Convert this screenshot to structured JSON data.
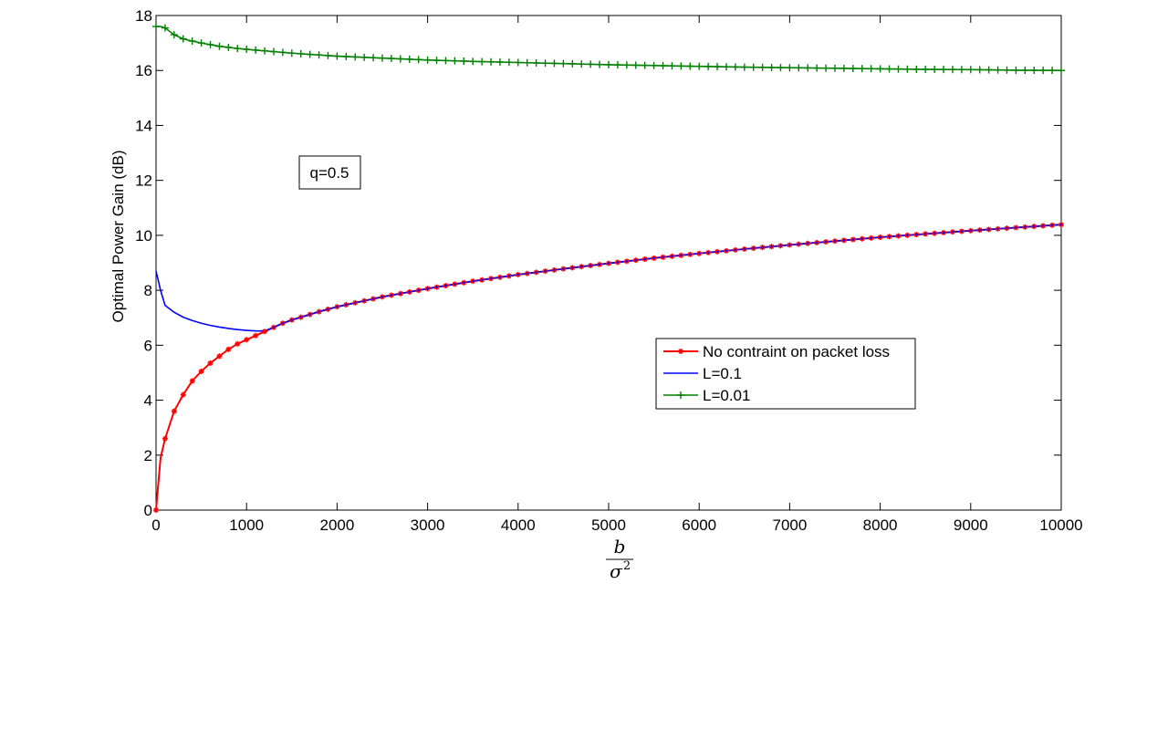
{
  "chart_data": {
    "type": "line",
    "xlabel_numerator": "b",
    "xlabel_denominator": "σ",
    "xlabel_exponent": "2",
    "ylabel": "Optimal Power Gain (dB)",
    "xlim": [
      0,
      10000
    ],
    "ylim": [
      0,
      18
    ],
    "x_ticks": [
      0,
      1000,
      2000,
      3000,
      4000,
      5000,
      6000,
      7000,
      8000,
      9000,
      10000
    ],
    "y_ticks": [
      0,
      2,
      4,
      6,
      8,
      10,
      12,
      14,
      16,
      18
    ],
    "grid": false,
    "legend_position": "center-right",
    "annotation": "q=0.5",
    "series": [
      {
        "name": "No contraint on packet loss",
        "color": "#ff0000",
        "marker": "star",
        "x": [
          0,
          50,
          100,
          200,
          300,
          400,
          500,
          600,
          700,
          800,
          900,
          1000,
          1100,
          1200,
          1300,
          1400,
          1500,
          1600,
          1700,
          1800,
          1900,
          2000,
          2500,
          3000,
          3500,
          4000,
          4500,
          5000,
          5500,
          6000,
          6500,
          7000,
          7500,
          8000,
          8500,
          9000,
          9500,
          10000
        ],
        "y": [
          0,
          1.9,
          2.6,
          3.6,
          4.2,
          4.7,
          5.05,
          5.35,
          5.6,
          5.85,
          6.05,
          6.2,
          6.35,
          6.5,
          6.65,
          6.8,
          6.92,
          7.02,
          7.12,
          7.22,
          7.31,
          7.4,
          7.76,
          8.06,
          8.33,
          8.57,
          8.78,
          8.98,
          9.17,
          9.34,
          9.5,
          9.65,
          9.79,
          9.93,
          10.05,
          10.17,
          10.28,
          10.39
        ]
      },
      {
        "name": "L=0.1",
        "color": "#0000ff",
        "marker": "none",
        "x": [
          0,
          50,
          100,
          200,
          300,
          400,
          500,
          600,
          700,
          800,
          900,
          1000,
          1100,
          1200,
          1300,
          1400,
          1500,
          1600,
          1700,
          1800,
          1900,
          2000,
          2500,
          3000,
          3500,
          4000,
          4500,
          5000,
          5500,
          6000,
          6500,
          7000,
          7500,
          8000,
          8500,
          9000,
          9500,
          10000
        ],
        "y": [
          8.7,
          8.0,
          7.45,
          7.2,
          7.02,
          6.9,
          6.8,
          6.72,
          6.66,
          6.61,
          6.57,
          6.54,
          6.52,
          6.52,
          6.65,
          6.8,
          6.92,
          7.02,
          7.12,
          7.22,
          7.31,
          7.4,
          7.76,
          8.06,
          8.33,
          8.57,
          8.78,
          8.98,
          9.17,
          9.34,
          9.5,
          9.65,
          9.79,
          9.93,
          10.05,
          10.17,
          10.28,
          10.39
        ]
      },
      {
        "name": "L=0.01",
        "color": "#008000",
        "marker": "plus",
        "x": [
          0,
          50,
          100,
          200,
          300,
          400,
          500,
          600,
          700,
          800,
          900,
          1000,
          1500,
          2000,
          2500,
          3000,
          3500,
          4000,
          4500,
          5000,
          5500,
          6000,
          6500,
          7000,
          7500,
          8000,
          8500,
          9000,
          9500,
          10000
        ],
        "y": [
          17.6,
          17.6,
          17.55,
          17.3,
          17.15,
          17.07,
          17.0,
          16.94,
          16.88,
          16.84,
          16.8,
          16.77,
          16.63,
          16.52,
          16.45,
          16.38,
          16.33,
          16.29,
          16.25,
          16.21,
          16.18,
          16.15,
          16.12,
          16.1,
          16.08,
          16.06,
          16.04,
          16.03,
          16.01,
          16.0
        ]
      }
    ]
  }
}
